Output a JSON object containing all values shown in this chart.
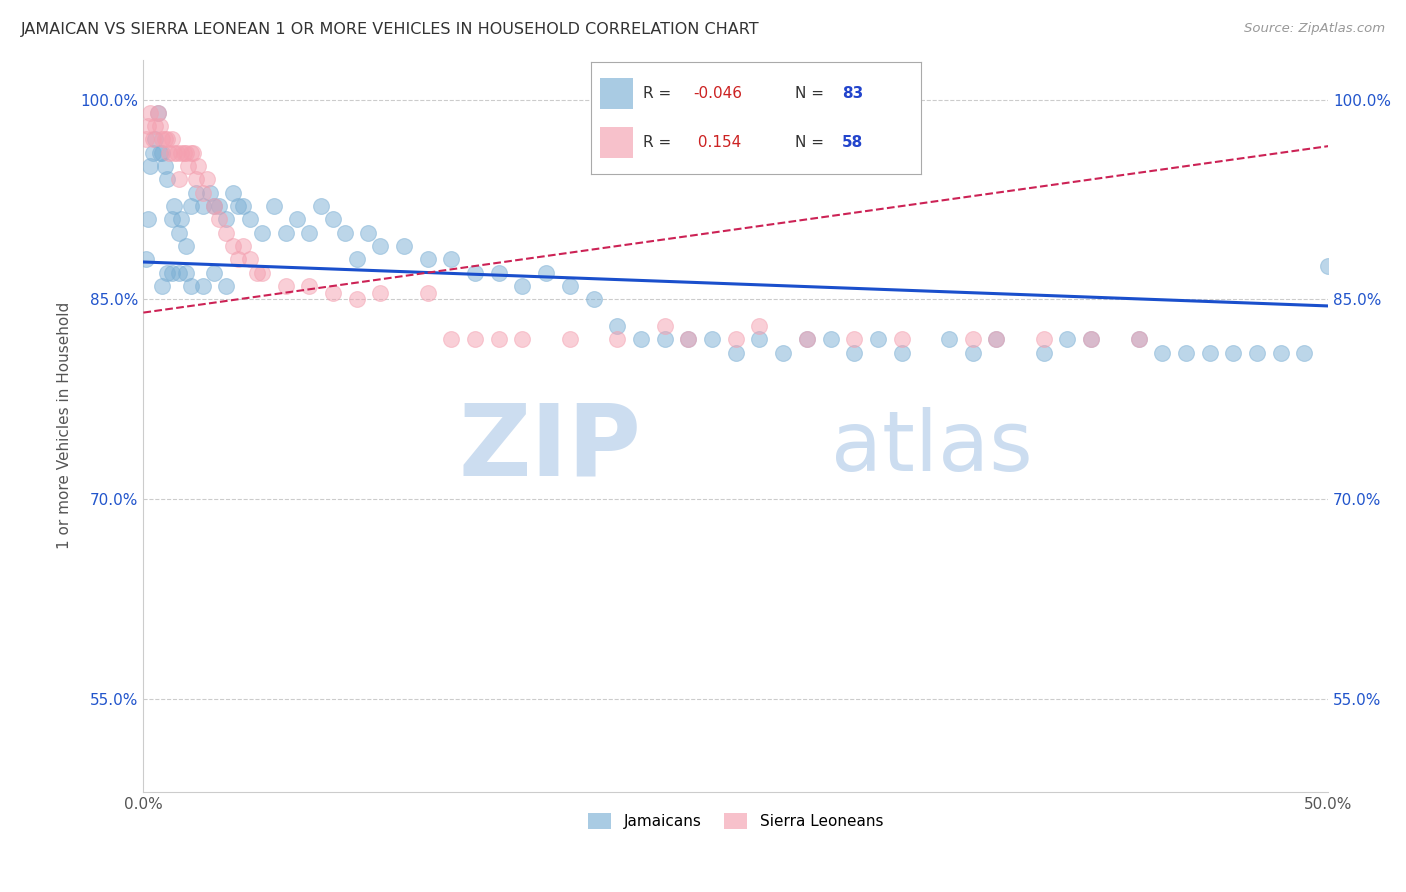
{
  "title": "JAMAICAN VS SIERRA LEONEAN 1 OR MORE VEHICLES IN HOUSEHOLD CORRELATION CHART",
  "source": "Source: ZipAtlas.com",
  "ylabel": "1 or more Vehicles in Household",
  "x_min": 0.0,
  "x_max": 0.5,
  "y_min": 0.48,
  "y_max": 1.03,
  "x_ticks": [
    0.0,
    0.1,
    0.2,
    0.3,
    0.4,
    0.5
  ],
  "x_tick_labels": [
    "0.0%",
    "",
    "",
    "",
    "",
    "50.0%"
  ],
  "y_ticks": [
    0.55,
    0.7,
    0.85,
    1.0
  ],
  "y_tick_labels": [
    "55.0%",
    "70.0%",
    "85.0%",
    "100.0%"
  ],
  "blue_color": "#7BAFD4",
  "pink_color": "#F4A0B0",
  "trend_blue": "#1a4fcc",
  "trend_pink": "#cc2255",
  "watermark": "ZIPatlas",
  "watermark_color": "#CCDDF0",
  "blue_trend_x": [
    0.0,
    0.5
  ],
  "blue_trend_y": [
    0.878,
    0.845
  ],
  "pink_trend_x": [
    0.0,
    0.5
  ],
  "pink_trend_y": [
    0.84,
    0.965
  ],
  "jamaicans_x": [
    0.001,
    0.002,
    0.003,
    0.004,
    0.005,
    0.006,
    0.007,
    0.008,
    0.009,
    0.01,
    0.012,
    0.013,
    0.015,
    0.016,
    0.018,
    0.02,
    0.022,
    0.025,
    0.028,
    0.03,
    0.032,
    0.035,
    0.038,
    0.04,
    0.042,
    0.045,
    0.05,
    0.055,
    0.06,
    0.065,
    0.07,
    0.075,
    0.08,
    0.085,
    0.09,
    0.095,
    0.1,
    0.11,
    0.12,
    0.13,
    0.14,
    0.15,
    0.16,
    0.17,
    0.18,
    0.19,
    0.2,
    0.21,
    0.22,
    0.23,
    0.24,
    0.25,
    0.26,
    0.27,
    0.28,
    0.29,
    0.3,
    0.31,
    0.32,
    0.34,
    0.35,
    0.36,
    0.38,
    0.39,
    0.4,
    0.42,
    0.43,
    0.44,
    0.45,
    0.46,
    0.47,
    0.48,
    0.49,
    0.5,
    0.008,
    0.01,
    0.012,
    0.015,
    0.018,
    0.02,
    0.025,
    0.03,
    0.035
  ],
  "jamaicans_y": [
    0.88,
    0.91,
    0.95,
    0.96,
    0.97,
    0.99,
    0.96,
    0.96,
    0.95,
    0.94,
    0.91,
    0.92,
    0.9,
    0.91,
    0.89,
    0.92,
    0.93,
    0.92,
    0.93,
    0.92,
    0.92,
    0.91,
    0.93,
    0.92,
    0.92,
    0.91,
    0.9,
    0.92,
    0.9,
    0.91,
    0.9,
    0.92,
    0.91,
    0.9,
    0.88,
    0.9,
    0.89,
    0.89,
    0.88,
    0.88,
    0.87,
    0.87,
    0.86,
    0.87,
    0.86,
    0.85,
    0.83,
    0.82,
    0.82,
    0.82,
    0.82,
    0.81,
    0.82,
    0.81,
    0.82,
    0.82,
    0.81,
    0.82,
    0.81,
    0.82,
    0.81,
    0.82,
    0.81,
    0.82,
    0.82,
    0.82,
    0.81,
    0.81,
    0.81,
    0.81,
    0.81,
    0.81,
    0.81,
    0.875,
    0.86,
    0.87,
    0.87,
    0.87,
    0.87,
    0.86,
    0.86,
    0.87,
    0.86
  ],
  "sierraleonean_x": [
    0.001,
    0.002,
    0.003,
    0.004,
    0.005,
    0.006,
    0.007,
    0.008,
    0.009,
    0.01,
    0.011,
    0.012,
    0.013,
    0.014,
    0.015,
    0.016,
    0.017,
    0.018,
    0.019,
    0.02,
    0.021,
    0.022,
    0.023,
    0.025,
    0.027,
    0.03,
    0.032,
    0.035,
    0.038,
    0.04,
    0.042,
    0.045,
    0.048,
    0.05,
    0.06,
    0.07,
    0.08,
    0.09,
    0.1,
    0.12,
    0.13,
    0.14,
    0.15,
    0.16,
    0.18,
    0.2,
    0.22,
    0.23,
    0.25,
    0.26,
    0.28,
    0.3,
    0.32,
    0.35,
    0.36,
    0.38,
    0.4,
    0.42
  ],
  "sierraleonean_y": [
    0.97,
    0.98,
    0.99,
    0.97,
    0.98,
    0.99,
    0.98,
    0.97,
    0.97,
    0.97,
    0.96,
    0.97,
    0.96,
    0.96,
    0.94,
    0.96,
    0.96,
    0.96,
    0.95,
    0.96,
    0.96,
    0.94,
    0.95,
    0.93,
    0.94,
    0.92,
    0.91,
    0.9,
    0.89,
    0.88,
    0.89,
    0.88,
    0.87,
    0.87,
    0.86,
    0.86,
    0.855,
    0.85,
    0.855,
    0.855,
    0.82,
    0.82,
    0.82,
    0.82,
    0.82,
    0.82,
    0.83,
    0.82,
    0.82,
    0.83,
    0.82,
    0.82,
    0.82,
    0.82,
    0.82,
    0.82,
    0.82,
    0.82
  ]
}
